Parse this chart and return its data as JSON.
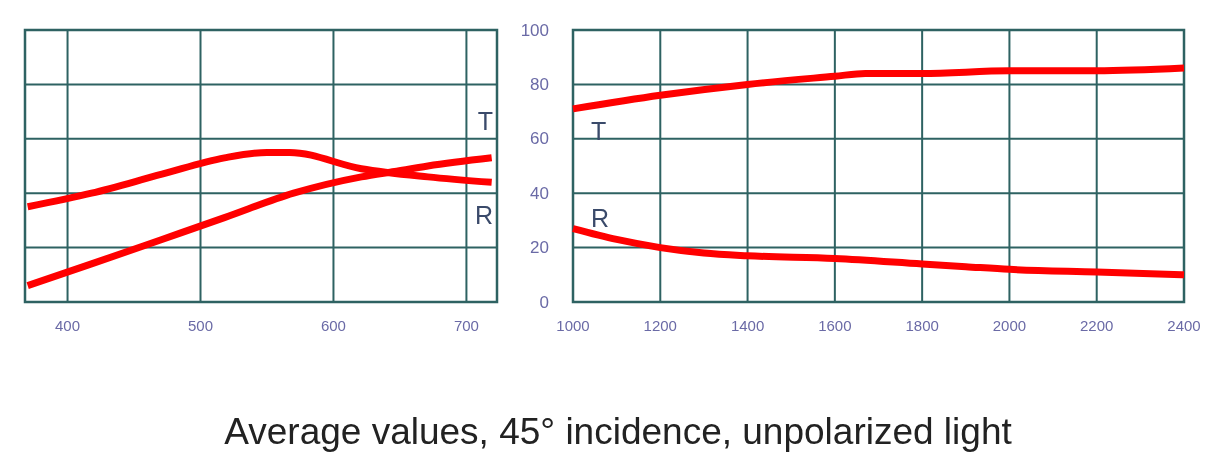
{
  "chart_data": [
    {
      "type": "line",
      "xlim": [
        368,
        723
      ],
      "xticks": [
        400,
        500,
        600,
        700
      ],
      "ylim": [
        0,
        100
      ],
      "yticks": [
        0,
        20,
        40,
        60,
        80,
        100
      ],
      "tick_labels": "x",
      "grid": true,
      "series": [
        {
          "name": "T",
          "color": "#ff0000",
          "x": [
            370,
            418,
            471,
            518,
            570,
            621,
            646,
            671,
            719
          ],
          "values": [
            6,
            14,
            23,
            31,
            40,
            46,
            48,
            50,
            53
          ]
        },
        {
          "name": "R",
          "color": "#ff0000",
          "x": [
            370,
            418,
            471,
            518,
            550,
            567,
            621,
            671,
            719
          ],
          "values": [
            35,
            40,
            47,
            53,
            55,
            55,
            49,
            46,
            44
          ]
        }
      ],
      "annotations": [
        "Average values, 45° incidence, unpolarized light"
      ]
    },
    {
      "type": "line",
      "xlim": [
        1000,
        2400
      ],
      "xticks": [
        1000,
        1200,
        1400,
        1600,
        1800,
        2000,
        2200,
        2400
      ],
      "ylim": [
        0,
        100
      ],
      "yticks": [
        0,
        20,
        40,
        60,
        80,
        100
      ],
      "grid": true,
      "series": [
        {
          "name": "T",
          "color": "#ff0000",
          "x": [
            1000,
            1200,
            1400,
            1600,
            1670,
            1800,
            2000,
            2200,
            2400
          ],
          "values": [
            71,
            76,
            80,
            83,
            84,
            84,
            85,
            85,
            86
          ]
        },
        {
          "name": "R",
          "color": "#ff0000",
          "x": [
            1000,
            1100,
            1200,
            1300,
            1400,
            1600,
            1800,
            1900,
            2000,
            2200,
            2400
          ],
          "values": [
            27,
            23,
            20,
            18,
            17,
            16,
            14,
            13,
            12,
            11,
            10
          ]
        }
      ]
    }
  ]
}
